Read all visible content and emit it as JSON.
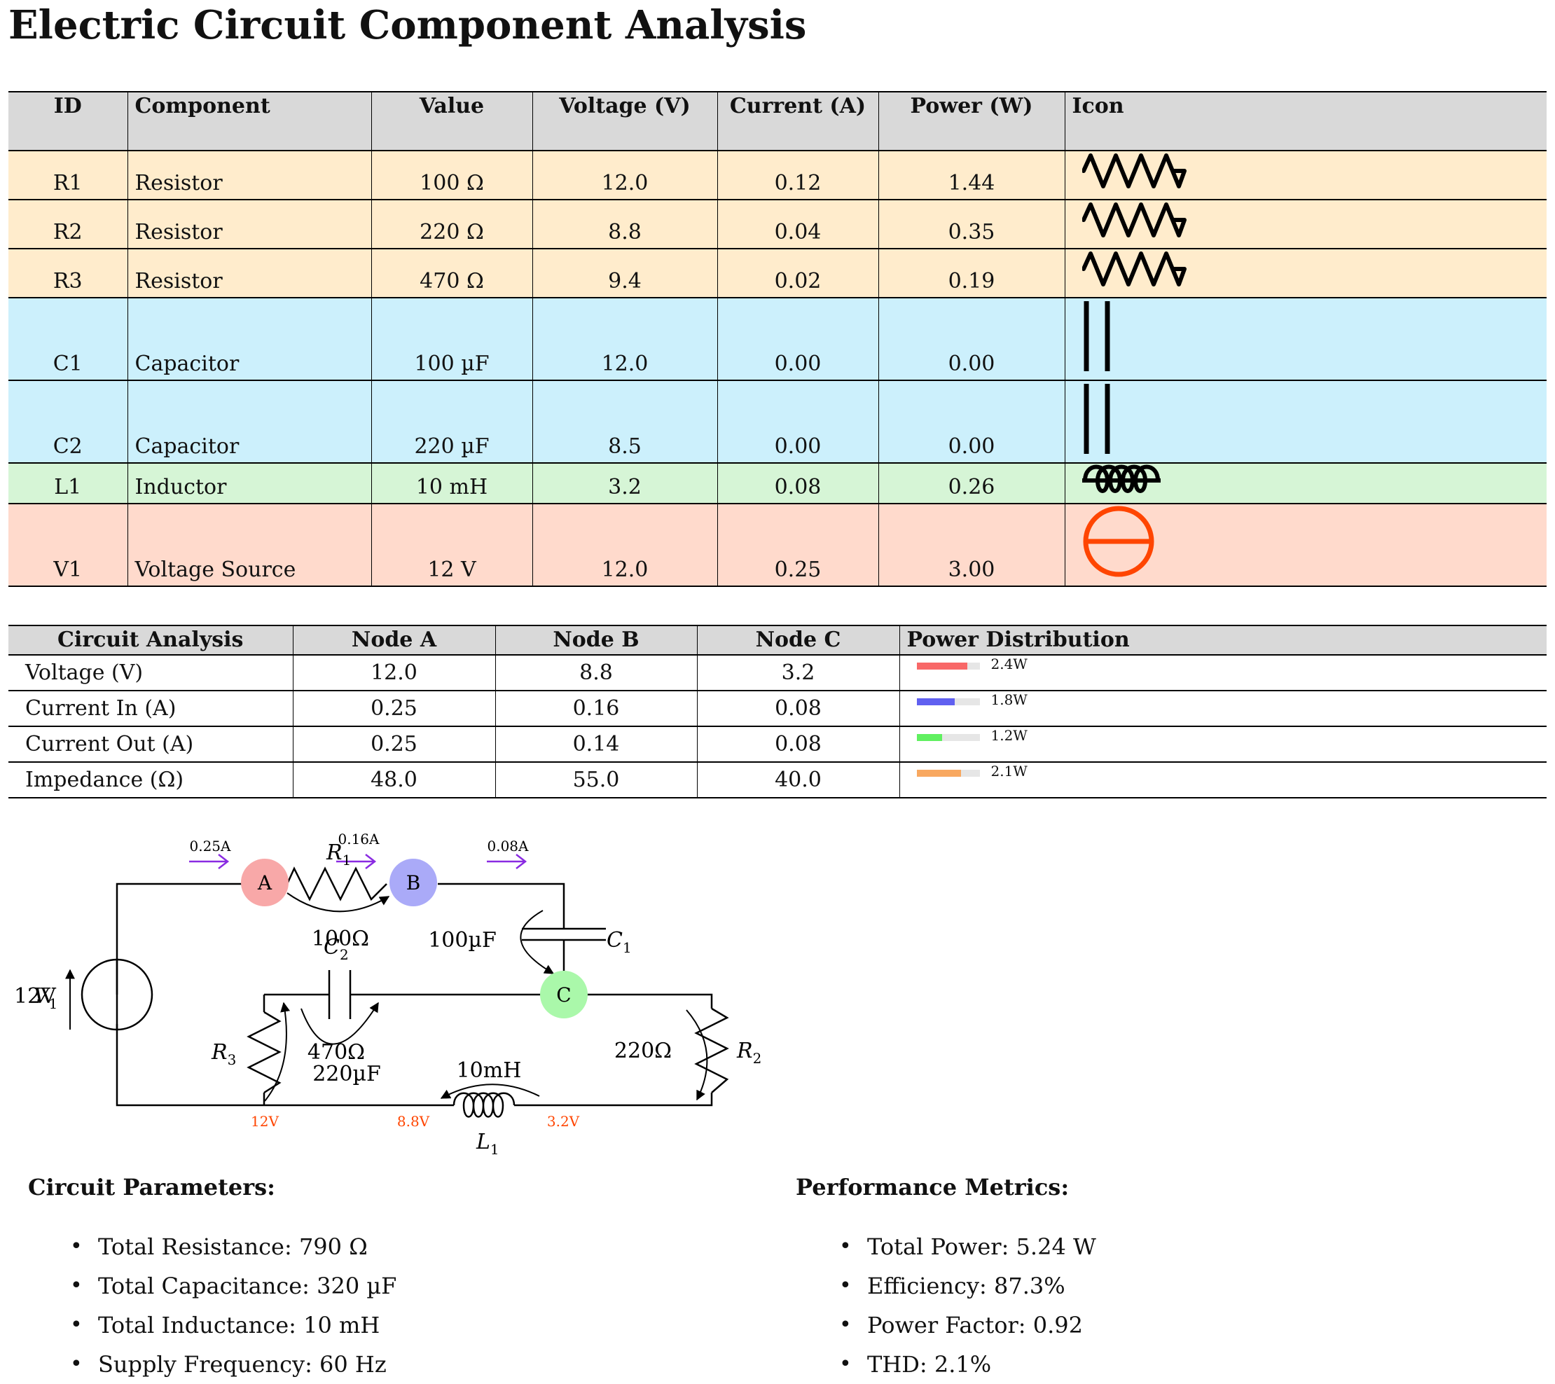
{
  "title": "Electric Circuit Component Analysis",
  "components_table": {
    "headers": [
      "ID",
      "Component",
      "Value",
      "Voltage (V)",
      "Current (A)",
      "Power (W)",
      "Icon"
    ],
    "rows": [
      {
        "id": "R1",
        "component": "Resistor",
        "value": "100 Ω",
        "voltage": "12.0",
        "current": "0.12",
        "power": "1.44",
        "icon": "resistor-icon",
        "color": "#ffeccc"
      },
      {
        "id": "R2",
        "component": "Resistor",
        "value": "220 Ω",
        "voltage": "8.8",
        "current": "0.04",
        "power": "0.35",
        "icon": "resistor-icon",
        "color": "#ffeccc"
      },
      {
        "id": "R3",
        "component": "Resistor",
        "value": "470 Ω",
        "voltage": "9.4",
        "current": "0.02",
        "power": "0.19",
        "icon": "resistor-icon",
        "color": "#ffeccc"
      },
      {
        "id": "C1",
        "component": "Capacitor",
        "value": "100 µF",
        "voltage": "12.0",
        "current": "0.00",
        "power": "0.00",
        "icon": "capacitor-icon",
        "color": "#ccf0fc"
      },
      {
        "id": "C2",
        "component": "Capacitor",
        "value": "220 µF",
        "voltage": "8.5",
        "current": "0.00",
        "power": "0.00",
        "icon": "capacitor-icon",
        "color": "#ccf0fc"
      },
      {
        "id": "L1",
        "component": "Inductor",
        "value": "10 mH",
        "voltage": "3.2",
        "current": "0.08",
        "power": "0.26",
        "icon": "inductor-icon",
        "color": "#d6f5d6"
      },
      {
        "id": "V1",
        "component": "Voltage Source",
        "value": "12 V",
        "voltage": "12.0",
        "current": "0.25",
        "power": "3.00",
        "icon": "voltage-source-icon",
        "color": "#ffdacc"
      }
    ]
  },
  "analysis_table": {
    "headers": [
      "Circuit Analysis",
      "Node A",
      "Node B",
      "Node C",
      "Power Distribution"
    ],
    "rows": [
      {
        "label": "Voltage (V)",
        "a": "12.0",
        "b": "8.8",
        "c": "3.2",
        "power": "2.4W",
        "power_fraction": 0.8,
        "bar_color": "#f86868"
      },
      {
        "label": "Current In (A)",
        "a": "0.25",
        "b": "0.16",
        "c": "0.08",
        "power": "1.8W",
        "power_fraction": 0.6,
        "bar_color": "#6060f0"
      },
      {
        "label": "Current Out (A)",
        "a": "0.25",
        "b": "0.14",
        "c": "0.08",
        "power": "1.2W",
        "power_fraction": 0.4,
        "bar_color": "#60f060"
      },
      {
        "label": "Impedance (Ω)",
        "a": "48.0",
        "b": "55.0",
        "c": "40.0",
        "power": "2.1W",
        "power_fraction": 0.7,
        "bar_color": "#f8a860"
      }
    ]
  },
  "circuit": {
    "nodes": {
      "a": "A",
      "b": "B",
      "c": "C"
    },
    "node_colors": {
      "a": "#f8a8a8",
      "b": "#aaaaf8",
      "c": "#aaf8aa"
    },
    "currents": {
      "i1": "0.25A",
      "i2": "0.16A",
      "i3": "0.08A"
    },
    "labels": {
      "r1": "R",
      "r1_sub": "1",
      "r1_value": "100Ω",
      "r2": "R",
      "r2_sub": "2",
      "r2_value": "220Ω",
      "r3": "R",
      "r3_sub": "3",
      "r3_value": "470Ω",
      "c1": "C",
      "c1_sub": "1",
      "c1_value": "100µF",
      "c2": "C",
      "c2_sub": "2",
      "c2_value": "220µF",
      "l1": "L",
      "l1_sub": "1",
      "l1_value": "10mH",
      "v1": "V",
      "v1_sub": "1",
      "v1_value": "12V"
    },
    "node_voltages": {
      "v_left": "12V",
      "v_mid": "8.8V",
      "v_right": "3.2V"
    },
    "current_color": "#8a2be2",
    "voltage_label_color": "#ff4500"
  },
  "circuit_parameters": {
    "title": "Circuit Parameters:",
    "items": [
      "Total Resistance: 790 Ω",
      "Total Capacitance: 320 µF",
      "Total Inductance: 10 mH",
      "Supply Frequency: 60 Hz"
    ]
  },
  "performance_metrics": {
    "title": "Performance Metrics:",
    "items": [
      "Total Power: 5.24 W",
      "Efficiency: 87.3%",
      "Power Factor: 0.92",
      "THD: 2.1%"
    ]
  }
}
